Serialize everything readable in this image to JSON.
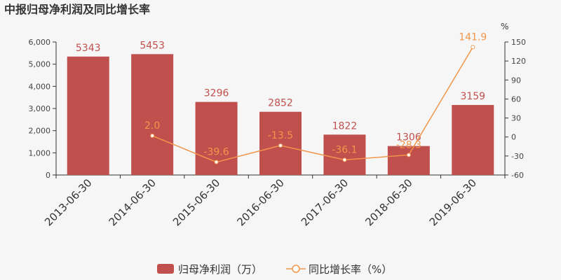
{
  "chart_data": {
    "type": "bar",
    "title": "中报归母净利润及同比增长率",
    "categories": [
      "2013-06-30",
      "2014-06-30",
      "2015-06-30",
      "2016-06-30",
      "2017-06-30",
      "2018-06-30",
      "2019-06-30"
    ],
    "series": [
      {
        "name": "归母净利润（万）",
        "type": "bar",
        "axis": "left",
        "values": [
          5343,
          5453,
          3296,
          2852,
          1822,
          1306,
          3159
        ],
        "labels": [
          "5343",
          "5453",
          "3296",
          "2852",
          "1822",
          "1306",
          "3159"
        ]
      },
      {
        "name": "同比增长率（%）",
        "type": "line",
        "axis": "right",
        "values": [
          null,
          2.0,
          -39.6,
          -13.5,
          -36.1,
          -28.3,
          141.9
        ],
        "labels": [
          "",
          "2.0",
          "-39.6",
          "-13.5",
          "-36.1",
          "-28.3",
          "141.9"
        ]
      }
    ],
    "y_left": {
      "min": 0,
      "max": 6000,
      "ticks": [
        0,
        1000,
        2000,
        3000,
        4000,
        5000,
        6000
      ],
      "tick_labels": [
        "0",
        "1,000",
        "2,000",
        "3,000",
        "4,000",
        "5,000",
        "6,000"
      ]
    },
    "y_right": {
      "min": -60,
      "max": 150,
      "ticks": [
        -60,
        -30,
        0,
        30,
        60,
        90,
        120,
        150
      ],
      "tick_labels": [
        "-60",
        "-30",
        "0",
        "30",
        "60",
        "90",
        "120",
        "150"
      ],
      "unit": "%"
    },
    "legend_position": "bottom",
    "grid": false,
    "colors": {
      "bar": "#c0504d",
      "line": "#f0964a"
    }
  }
}
